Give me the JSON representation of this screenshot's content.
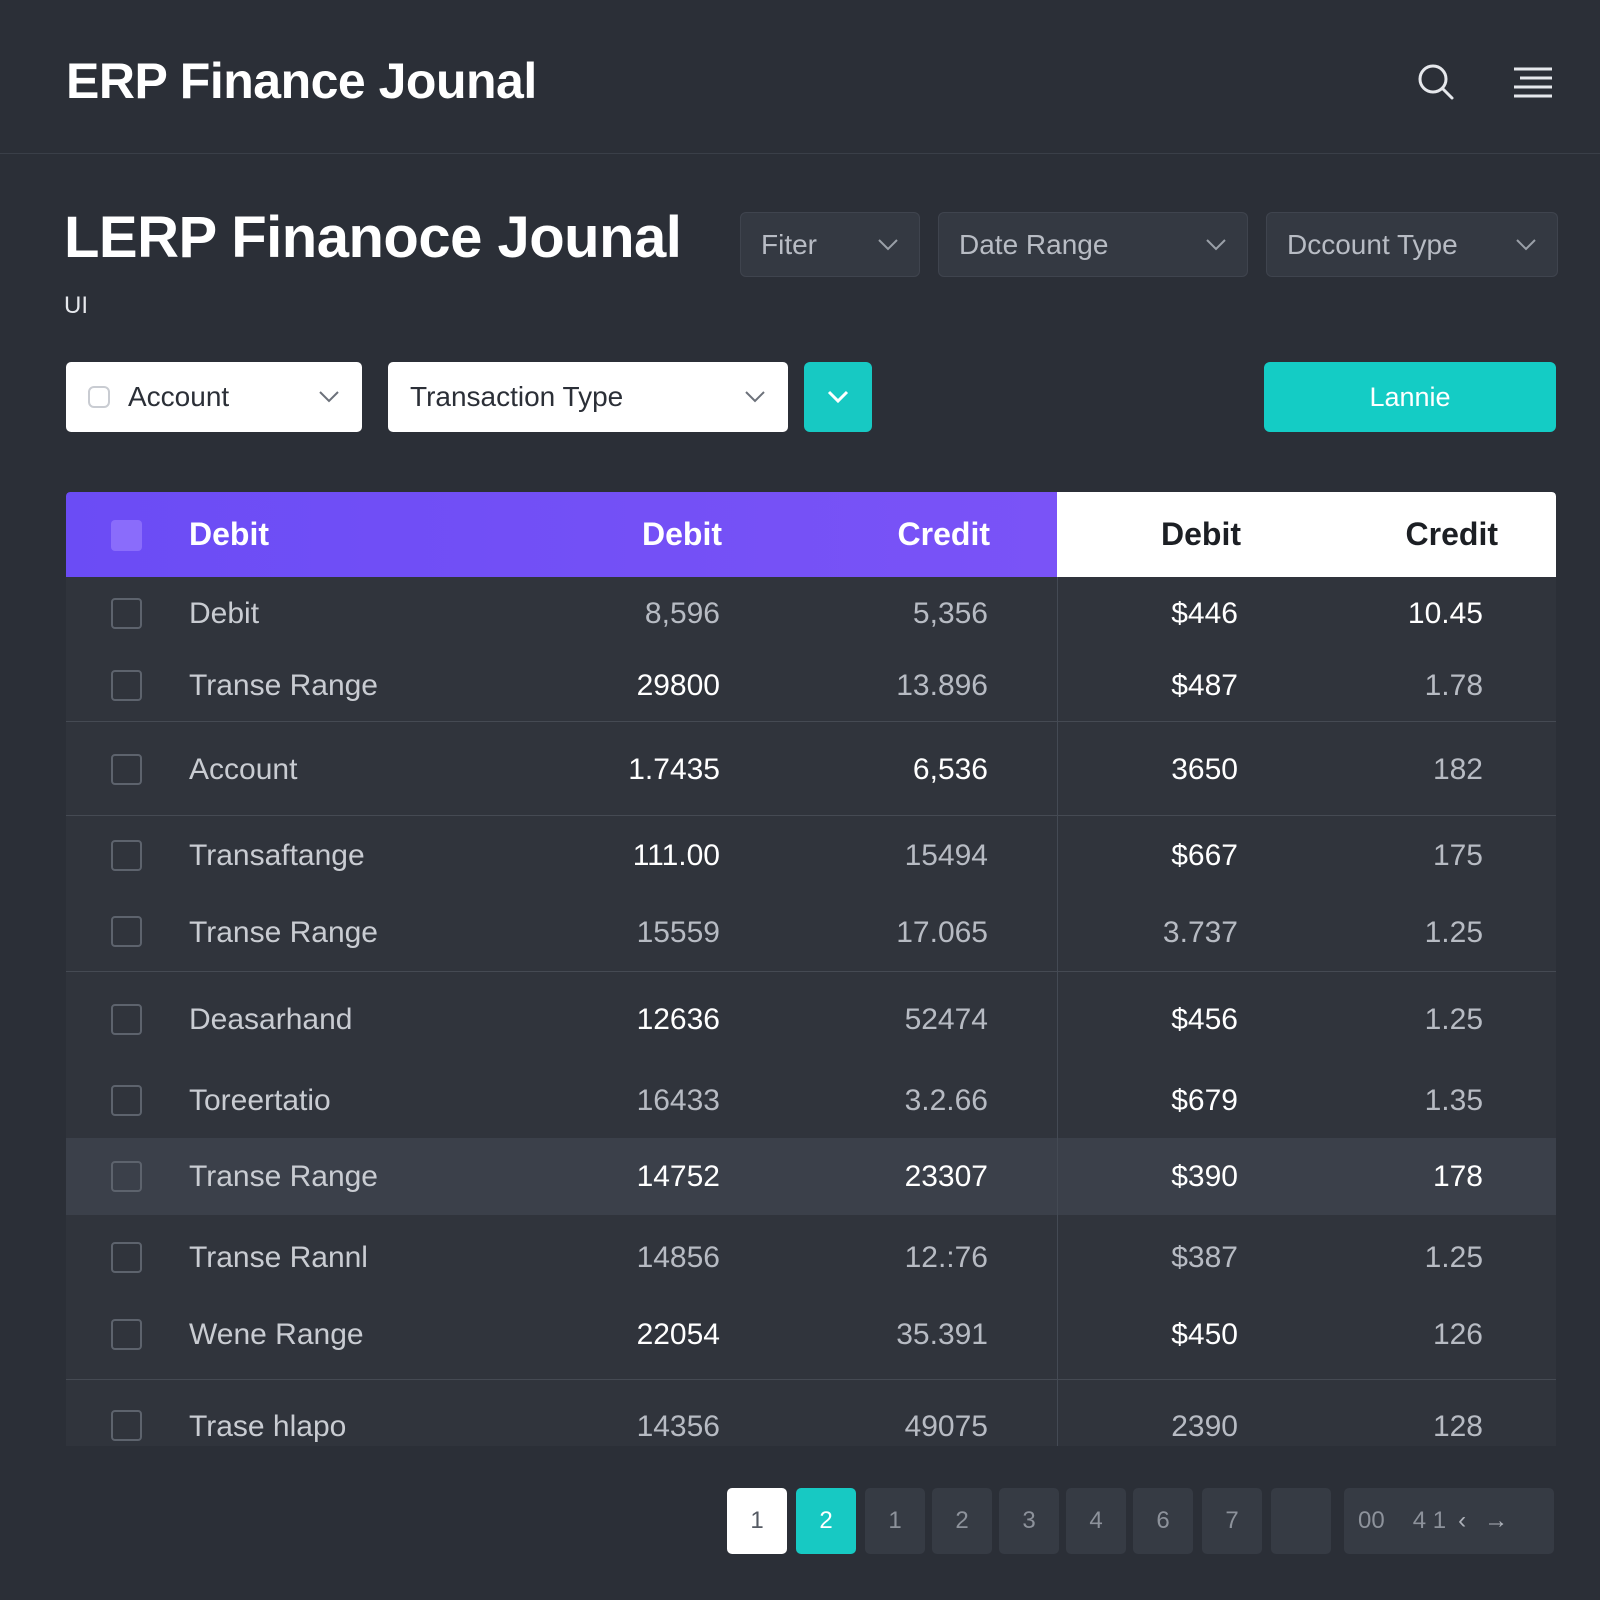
{
  "header": {
    "app_title": "ERP Finance Jounal"
  },
  "page": {
    "title": "LERP Finanoce Jounal",
    "subtitle": "UI"
  },
  "filters": {
    "filter_label": "Fiter",
    "date_range_label": "Date Range",
    "account_type_label": "Dccount Type",
    "account_label": "Account",
    "transaction_type_label": "Transaction Type",
    "primary_button_label": "Lannie"
  },
  "table": {
    "columns": [
      "Debit",
      "Debit",
      "Credit",
      "Debit",
      "Credit"
    ],
    "rows": [
      {
        "name": "Debit",
        "c1": "8,596",
        "c2": "5,356",
        "c3": "$446",
        "c4": "10.45"
      },
      {
        "name": "Transe Range",
        "c1": "29800",
        "c2": "13.896",
        "c3": "$487",
        "c4": "1.78"
      },
      {
        "name": "Account",
        "c1": "1.7435",
        "c2": "6,536",
        "c3": "3650",
        "c4": "182"
      },
      {
        "name": "Transaftange",
        "c1": "111.00",
        "c2": "15494",
        "c3": "$667",
        "c4": "175"
      },
      {
        "name": "Transe Range",
        "c1": "15559",
        "c2": "17.065",
        "c3": "3.737",
        "c4": "1.25"
      },
      {
        "name": "Deasarhand",
        "c1": "12636",
        "c2": "52474",
        "c3": "$456",
        "c4": "1.25"
      },
      {
        "name": "Toreertatio",
        "c1": "16433",
        "c2": "3.2.66",
        "c3": "$679",
        "c4": "1.35"
      },
      {
        "name": "Transe Range",
        "c1": "14752",
        "c2": "23307",
        "c3": "$390",
        "c4": "178"
      },
      {
        "name": "Transe Rannl",
        "c1": "14856",
        "c2": "12.:76",
        "c3": "$387",
        "c4": "1.25"
      },
      {
        "name": "Wene Range",
        "c1": "22054",
        "c2": "35.391",
        "c3": "$450",
        "c4": "126"
      },
      {
        "name": "Trase hlapo",
        "c1": "14356",
        "c2": "49075",
        "c3": "2390",
        "c4": "128"
      }
    ]
  },
  "pagination": {
    "pages": [
      "1",
      "2",
      "1",
      "2",
      "3",
      "4",
      "6",
      "7",
      ""
    ],
    "summary": "00",
    "range": "4 1"
  },
  "icons": {
    "search": "search-icon",
    "menu": "menu-icon",
    "chevron": "chevron-down-icon"
  },
  "colors": {
    "accent_teal": "#17c9c3",
    "header_purple": "#6b4cf5",
    "background": "#2b2f37"
  }
}
